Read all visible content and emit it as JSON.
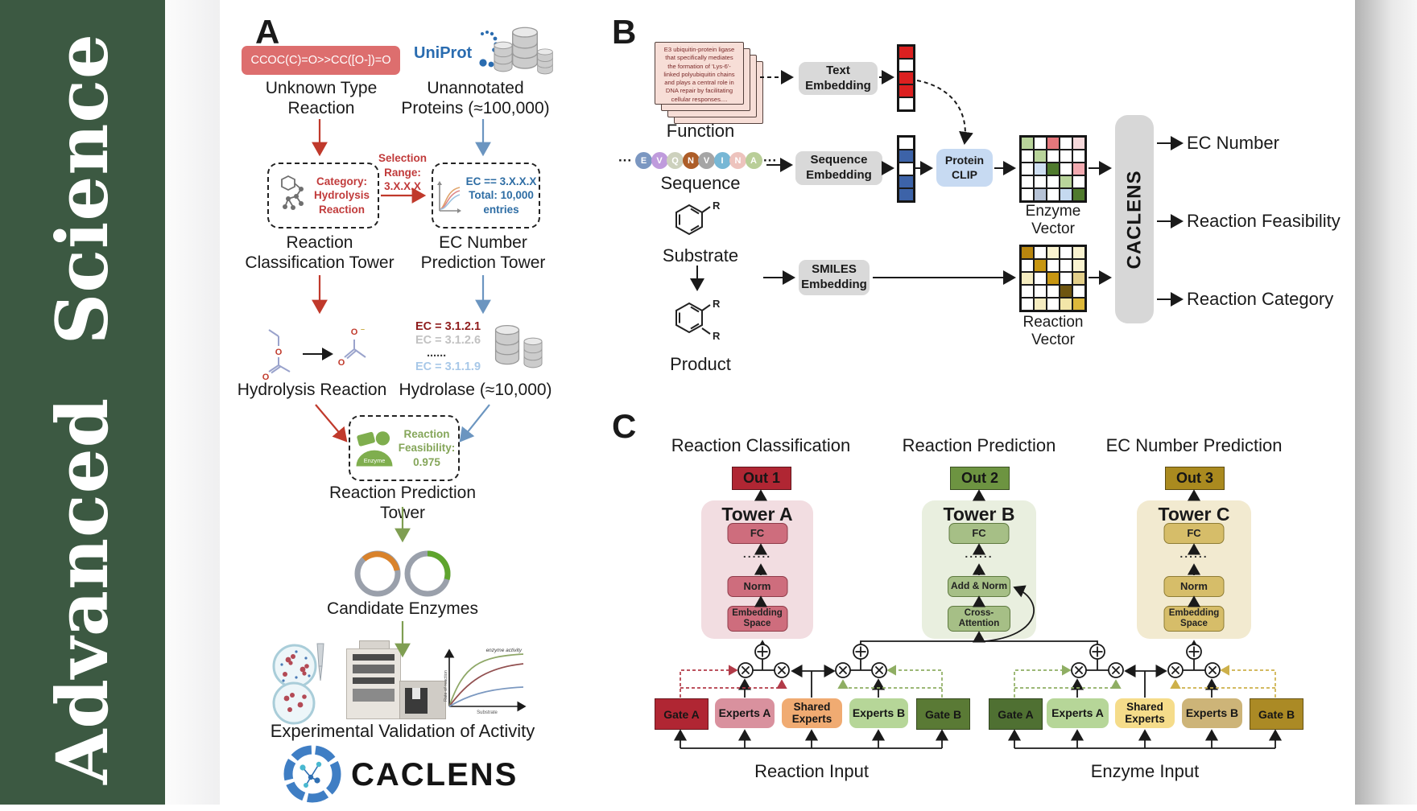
{
  "sidebar": {
    "title": "Advanced Science"
  },
  "panelA": {
    "label": "A",
    "smiles": "CCOC(C)=O>>CC([O-])=O",
    "unknown_reaction": "Unknown Type\nReaction",
    "uniprot": "UniProt",
    "unannotated": "Unannotated\nProteins (≈100,000)",
    "category_box": "Category:\nHydrolysis\nReaction",
    "selection": "Selection\nRange:\n3.X.X.X",
    "ec_box": "EC == 3.X.X.X\nTotal: 10,000\nentries",
    "classification_tower": "Reaction\nClassification Tower",
    "ec_tower": "EC Number\nPrediction Tower",
    "hydrolysis": "Hydrolysis Reaction",
    "ec_list": [
      {
        "text": "EC = 3.1.2.1",
        "color": "#8f1d1d"
      },
      {
        "text": "EC = 3.1.2.6",
        "color": "#c2c2c2"
      },
      {
        "text": "......",
        "color": "#3a3a3a"
      },
      {
        "text": "EC = 3.1.1.9",
        "color": "#a8c8e8"
      }
    ],
    "hydrolase": "Hydrolase (≈10,000)",
    "enzyme": "Enzyme",
    "feasibility": "Reaction\nFeasibility:\n0.975",
    "prediction_tower": "Reaction Prediction Tower",
    "candidates": "Candidate Enzymes",
    "plot": {
      "curve_label": "enzyme activity",
      "ylabel": "Rate of reaction",
      "xlabel": "Substrate"
    },
    "validation": "Experimental Validation of Activity",
    "logo_text": "CACLENS"
  },
  "panelB": {
    "label": "B",
    "function_card": "E3 ubiquitin-protein ligase that specifically mediates the formation of 'Lys-6'-linked polyubiquitin chains and plays a central role in DNA repair by facilitating cellular responses....",
    "function": "Function",
    "ellipsis": "···",
    "sequence_circles": [
      {
        "ch": "E",
        "color": "#7b97c1"
      },
      {
        "ch": "V",
        "color": "#bf9bdc"
      },
      {
        "ch": "Q",
        "color": "#cdd1bd"
      },
      {
        "ch": "N",
        "color": "#ad5d28"
      },
      {
        "ch": "V",
        "color": "#a5a5a5"
      },
      {
        "ch": "I",
        "color": "#77b7d5"
      },
      {
        "ch": "N",
        "color": "#edc3bd"
      },
      {
        "ch": "A",
        "color": "#b9ce98"
      }
    ],
    "sequence": "Sequence",
    "substrate": "Substrate",
    "product": "Product",
    "r_label": "R",
    "text_embedding": "Text\nEmbedding",
    "sequence_embedding": "Sequence\nEmbedding",
    "smiles_embedding": "SMILES\nEmbedding",
    "protein_clip": "Protein\nCLIP",
    "text_vector": [
      "#dc2020",
      "#ffffff",
      "#dc2020",
      "#dc2020",
      "#ffffff"
    ],
    "seq_vector": [
      "#ffffff",
      "#3d63a8",
      "#ffffff",
      "#3d63a8",
      "#3d63a8"
    ],
    "enzyme_grid": [
      [
        "#b9d49b",
        "#ffffff",
        "#e4777c",
        "#ffffff",
        "#f6d9db"
      ],
      [
        "#ffffff",
        "#b9d49b",
        "#ffffff",
        "#ffffff",
        "#ffffff"
      ],
      [
        "#ffffff",
        "#cfdff2",
        "#4f7a2d",
        "#ffffff",
        "#f2aab0"
      ],
      [
        "#ffffff",
        "#ffffff",
        "#ffffff",
        "#b9d49b",
        "#ffffff"
      ],
      [
        "#ffffff",
        "#b7c3d6",
        "#ffffff",
        "#c5d9f0",
        "#4f7a2d"
      ]
    ],
    "reaction_grid": [
      [
        "#b8860f",
        "#ffffff",
        "#faf3d0",
        "#ffffff",
        "#faf3d0"
      ],
      [
        "#ffffff",
        "#c79612",
        "#ffffff",
        "#ffffff",
        "#faf3d0"
      ],
      [
        "#f5ecc0",
        "#ffffff",
        "#c79612",
        "#ffffff",
        "#e3cf8a"
      ],
      [
        "#ffffff",
        "#ffffff",
        "#ffffff",
        "#6e5510",
        "#ffffff"
      ],
      [
        "#ffffff",
        "#f5ecc0",
        "#ffffff",
        "#f3e6a8",
        "#ddb83a"
      ]
    ],
    "enzyme_vector_label": "Enzyme Vector",
    "reaction_vector_label": "Reaction Vector",
    "caclens": "CACLENS",
    "outputs": [
      "EC Number",
      "Reaction Feasibility",
      "Reaction Category"
    ]
  },
  "panelC": {
    "label": "C",
    "titles": [
      "Reaction Classification",
      "Reaction Prediction",
      "EC Number Prediction"
    ],
    "outs": [
      "Out 1",
      "Out 2",
      "Out 3"
    ],
    "tower_names": [
      "Tower A",
      "Tower B",
      "Tower C"
    ],
    "fc": "FC",
    "dots": "......",
    "norm": "Norm",
    "embedding_space": "Embedding\nSpace",
    "add_norm": "Add & Norm",
    "cross_attention": "Cross-\nAttention",
    "gate_a": "Gate A",
    "experts_a": "Experts A",
    "shared_experts": "Shared\nExperts",
    "experts_b": "Experts B",
    "gate_b": "Gate B",
    "reaction_input": "Reaction Input",
    "enzyme_input": "Enzyme Input",
    "colors": {
      "out1": "#b02633",
      "out2": "#6d9441",
      "out3": "#aa8a1f",
      "gateA_reaction": "#b02633",
      "expertsA_reaction": "#d9919e",
      "shared_reaction": "#f0ab72",
      "expertsB_reaction": "#b6d698",
      "gateB_reaction": "#5a7a35",
      "gateA_enzyme": "#4f7032",
      "expertsA_enzyme": "#b6d698",
      "shared_enzyme": "#f5dc8a",
      "expertsB_enzyme": "#cdb478",
      "gateB_enzyme": "#ab8a25"
    }
  }
}
